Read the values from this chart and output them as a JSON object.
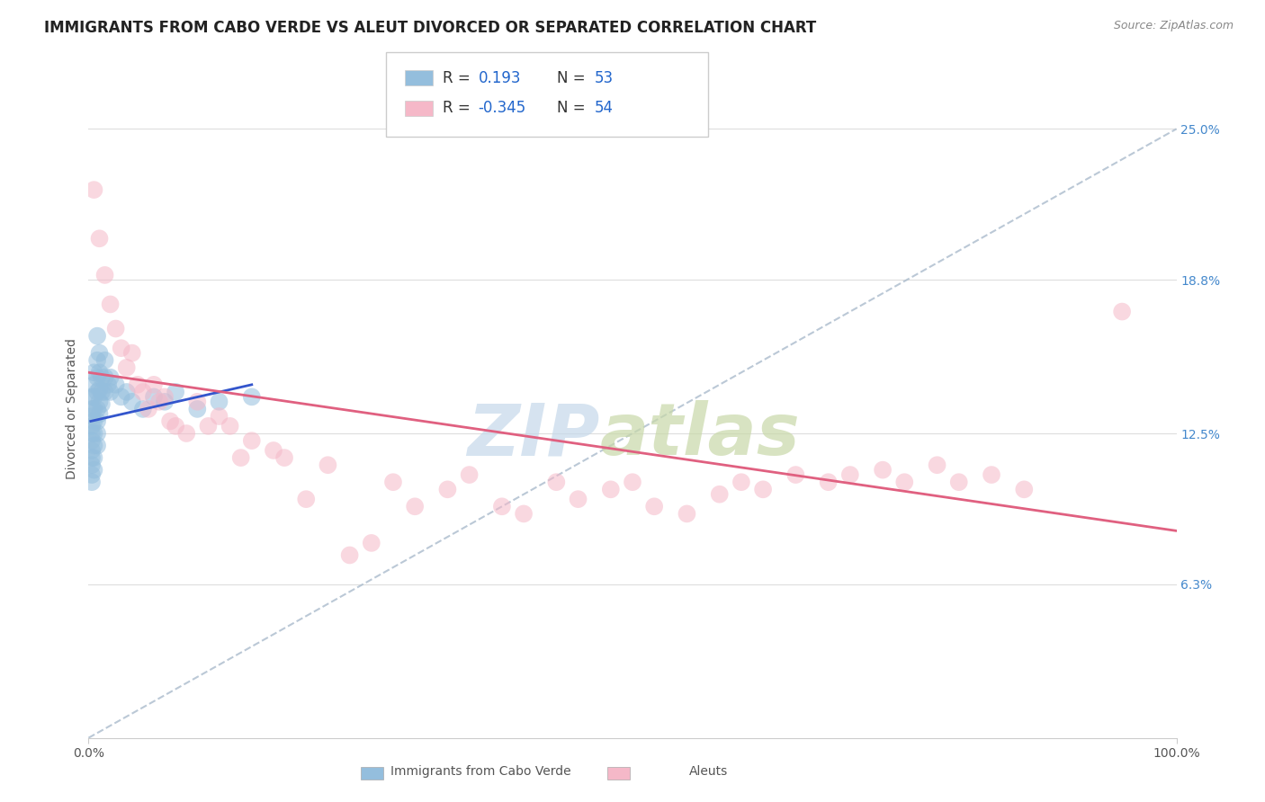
{
  "title": "IMMIGRANTS FROM CABO VERDE VS ALEUT DIVORCED OR SEPARATED CORRELATION CHART",
  "source_text": "Source: ZipAtlas.com",
  "ylabel": "Divorced or Separated",
  "xlim": [
    0,
    100
  ],
  "ylim": [
    0,
    27
  ],
  "x_ticks": [
    0,
    100
  ],
  "x_tick_labels": [
    "0.0%",
    "100.0%"
  ],
  "y_ticks_right": [
    6.3,
    12.5,
    18.8,
    25.0
  ],
  "y_tick_labels_right": [
    "6.3%",
    "12.5%",
    "18.8%",
    "25.0%"
  ],
  "legend_entries": [
    {
      "label": "Immigrants from Cabo Verde",
      "color": "#a8c4e0",
      "R": "0.193",
      "N": "53"
    },
    {
      "label": "Aleuts",
      "color": "#f4a7b9",
      "R": "-0.345",
      "N": "54"
    }
  ],
  "blue_scatter": [
    [
      0.3,
      14.0
    ],
    [
      0.3,
      13.5
    ],
    [
      0.3,
      13.2
    ],
    [
      0.3,
      12.8
    ],
    [
      0.3,
      12.5
    ],
    [
      0.3,
      12.2
    ],
    [
      0.3,
      11.8
    ],
    [
      0.3,
      11.5
    ],
    [
      0.3,
      11.2
    ],
    [
      0.3,
      10.8
    ],
    [
      0.3,
      10.5
    ],
    [
      0.5,
      15.0
    ],
    [
      0.5,
      14.5
    ],
    [
      0.5,
      14.0
    ],
    [
      0.5,
      13.5
    ],
    [
      0.5,
      13.0
    ],
    [
      0.5,
      12.5
    ],
    [
      0.5,
      12.0
    ],
    [
      0.5,
      11.5
    ],
    [
      0.5,
      11.0
    ],
    [
      0.8,
      16.5
    ],
    [
      0.8,
      15.5
    ],
    [
      0.8,
      14.8
    ],
    [
      0.8,
      14.2
    ],
    [
      0.8,
      13.5
    ],
    [
      0.8,
      13.0
    ],
    [
      0.8,
      12.5
    ],
    [
      0.8,
      12.0
    ],
    [
      1.0,
      15.8
    ],
    [
      1.0,
      15.0
    ],
    [
      1.0,
      14.3
    ],
    [
      1.0,
      13.8
    ],
    [
      1.0,
      13.3
    ],
    [
      1.2,
      14.8
    ],
    [
      1.2,
      14.2
    ],
    [
      1.2,
      13.7
    ],
    [
      1.5,
      15.5
    ],
    [
      1.5,
      14.8
    ],
    [
      1.5,
      14.2
    ],
    [
      1.8,
      14.5
    ],
    [
      2.0,
      14.8
    ],
    [
      2.0,
      14.2
    ],
    [
      2.5,
      14.5
    ],
    [
      3.0,
      14.0
    ],
    [
      3.5,
      14.2
    ],
    [
      4.0,
      13.8
    ],
    [
      5.0,
      13.5
    ],
    [
      6.0,
      14.0
    ],
    [
      7.0,
      13.8
    ],
    [
      8.0,
      14.2
    ],
    [
      10.0,
      13.5
    ],
    [
      12.0,
      13.8
    ],
    [
      15.0,
      14.0
    ]
  ],
  "pink_scatter": [
    [
      0.5,
      22.5
    ],
    [
      1.0,
      20.5
    ],
    [
      1.5,
      19.0
    ],
    [
      2.0,
      17.8
    ],
    [
      2.5,
      16.8
    ],
    [
      3.0,
      16.0
    ],
    [
      3.5,
      15.2
    ],
    [
      4.0,
      15.8
    ],
    [
      4.5,
      14.5
    ],
    [
      5.0,
      14.2
    ],
    [
      5.5,
      13.5
    ],
    [
      6.0,
      14.5
    ],
    [
      6.5,
      13.8
    ],
    [
      7.0,
      14.0
    ],
    [
      7.5,
      13.0
    ],
    [
      8.0,
      12.8
    ],
    [
      9.0,
      12.5
    ],
    [
      10.0,
      13.8
    ],
    [
      11.0,
      12.8
    ],
    [
      12.0,
      13.2
    ],
    [
      13.0,
      12.8
    ],
    [
      14.0,
      11.5
    ],
    [
      15.0,
      12.2
    ],
    [
      17.0,
      11.8
    ],
    [
      18.0,
      11.5
    ],
    [
      20.0,
      9.8
    ],
    [
      22.0,
      11.2
    ],
    [
      24.0,
      7.5
    ],
    [
      26.0,
      8.0
    ],
    [
      28.0,
      10.5
    ],
    [
      30.0,
      9.5
    ],
    [
      33.0,
      10.2
    ],
    [
      35.0,
      10.8
    ],
    [
      38.0,
      9.5
    ],
    [
      40.0,
      9.2
    ],
    [
      43.0,
      10.5
    ],
    [
      45.0,
      9.8
    ],
    [
      48.0,
      10.2
    ],
    [
      50.0,
      10.5
    ],
    [
      52.0,
      9.5
    ],
    [
      55.0,
      9.2
    ],
    [
      58.0,
      10.0
    ],
    [
      60.0,
      10.5
    ],
    [
      62.0,
      10.2
    ],
    [
      65.0,
      10.8
    ],
    [
      68.0,
      10.5
    ],
    [
      70.0,
      10.8
    ],
    [
      73.0,
      11.0
    ],
    [
      75.0,
      10.5
    ],
    [
      78.0,
      11.2
    ],
    [
      80.0,
      10.5
    ],
    [
      83.0,
      10.8
    ],
    [
      86.0,
      10.2
    ],
    [
      95.0,
      17.5
    ]
  ],
  "blue_line": {
    "x": [
      0.2,
      15.0
    ],
    "y": [
      13.0,
      14.5
    ]
  },
  "pink_line": {
    "x": [
      0.0,
      100.0
    ],
    "y": [
      15.0,
      8.5
    ]
  },
  "dashed_line": {
    "x": [
      0.0,
      100.0
    ],
    "y": [
      0.0,
      25.0
    ]
  },
  "bg_color": "#ffffff",
  "grid_color": "#dddddd",
  "scatter_alpha": 0.55,
  "scatter_size": 200,
  "blue_color": "#94bedd",
  "pink_color": "#f5b8c8",
  "blue_line_color": "#3355cc",
  "pink_line_color": "#e06080",
  "dashed_line_color": "#aabbcc",
  "title_fontsize": 12,
  "label_fontsize": 10,
  "tick_fontsize": 10,
  "source_fontsize": 9,
  "legend_R_color": "#2266cc",
  "legend_N_color": "#2266cc",
  "watermark_zip_color": "#c5d8ea",
  "watermark_atlas_color": "#c8d8a8"
}
